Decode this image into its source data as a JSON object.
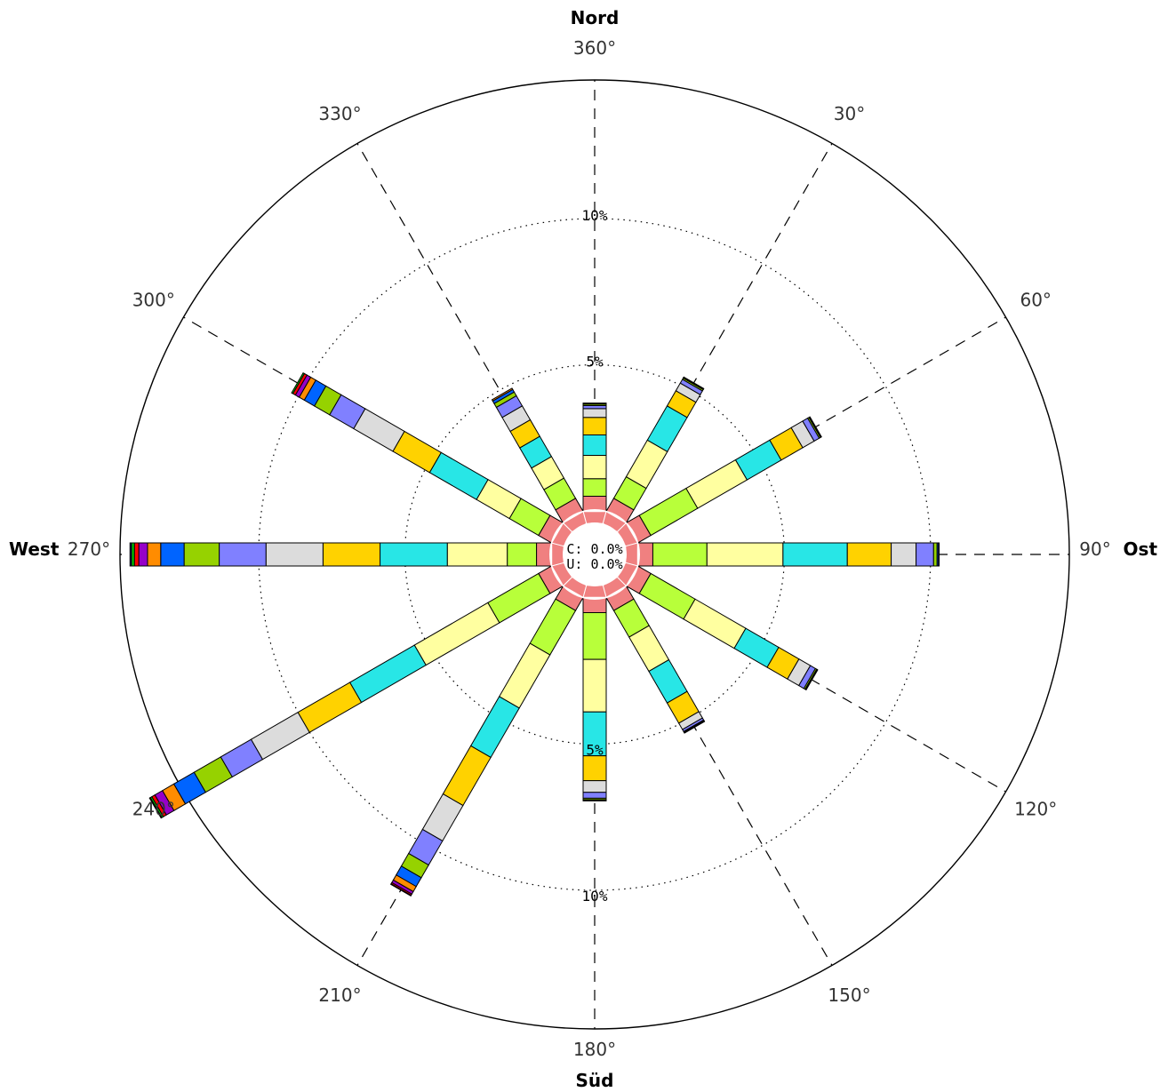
{
  "chart_data": {
    "type": "wind-rose",
    "title": "",
    "directions": {
      "north": "Nord",
      "east": "Ost",
      "south": "Süd",
      "west": "West"
    },
    "angle_labels": [
      {
        "deg": 360,
        "text": "360°"
      },
      {
        "deg": 30,
        "text": "30°"
      },
      {
        "deg": 60,
        "text": "60°"
      },
      {
        "deg": 90,
        "text": "90°"
      },
      {
        "deg": 120,
        "text": "120°"
      },
      {
        "deg": 150,
        "text": "150°"
      },
      {
        "deg": 180,
        "text": "180°"
      },
      {
        "deg": 210,
        "text": "210°"
      },
      {
        "deg": 240,
        "text": "240°"
      },
      {
        "deg": 270,
        "text": "270°"
      },
      {
        "deg": 300,
        "text": "300°"
      },
      {
        "deg": 330,
        "text": "330°"
      }
    ],
    "rings": [
      {
        "value": 5,
        "label": "5%"
      },
      {
        "value": 10,
        "label": "10%"
      }
    ],
    "ring_labels_north": [
      "5%",
      "10%"
    ],
    "ring_labels_south": [
      "5%",
      "10%"
    ],
    "r_max": 16.05,
    "calm_label": "C:  0.0%",
    "undefined_label": "U:  0.0%",
    "bin_colors": [
      "#f08080",
      "#b8ff3a",
      "#ffffa0",
      "#28e6e6",
      "#ffd200",
      "#dcdcdc",
      "#8080ff",
      "#96d200",
      "#0064ff",
      "#ff8c00",
      "#9600c8",
      "#ff0000",
      "#00c800",
      "#000080"
    ],
    "sectors": [
      {
        "direction": 0,
        "segments": [
          0.5,
          0.6,
          0.8,
          0.7,
          0.6,
          0.3,
          0.1,
          0.05,
          0.02,
          0.02
        ]
      },
      {
        "direction": 30,
        "segments": [
          0.5,
          0.85,
          1.45,
          1.35,
          0.6,
          0.3,
          0.15,
          0.05,
          0.02,
          0.02
        ]
      },
      {
        "direction": 60,
        "segments": [
          0.5,
          1.85,
          1.95,
          1.35,
          0.85,
          0.45,
          0.2,
          0.05,
          0.02,
          0.02
        ]
      },
      {
        "direction": 90,
        "segments": [
          0.5,
          1.85,
          2.6,
          2.2,
          1.5,
          0.85,
          0.6,
          0.12,
          0.05,
          0.02
        ]
      },
      {
        "direction": 120,
        "segments": [
          0.5,
          1.75,
          2.0,
          1.3,
          0.8,
          0.45,
          0.2,
          0.05,
          0.02,
          0.02
        ]
      },
      {
        "direction": 150,
        "segments": [
          0.5,
          1.05,
          1.35,
          1.25,
          0.8,
          0.25,
          0.08,
          0.03,
          0.02,
          0.01
        ]
      },
      {
        "direction": 180,
        "segments": [
          0.5,
          1.6,
          1.8,
          1.5,
          0.85,
          0.4,
          0.2,
          0.05,
          0.02,
          0.02
        ]
      },
      {
        "direction": 210,
        "segments": [
          0.5,
          1.75,
          2.1,
          1.95,
          1.9,
          1.4,
          0.95,
          0.5,
          0.35,
          0.2,
          0.1,
          0.05,
          0.02
        ]
      },
      {
        "direction": 240,
        "segments": [
          0.5,
          2.0,
          2.9,
          2.55,
          2.05,
          1.85,
          1.2,
          1.05,
          0.8,
          0.45,
          0.3,
          0.12,
          0.06,
          0.03
        ]
      },
      {
        "direction": 270,
        "segments": [
          0.5,
          1.0,
          2.05,
          2.3,
          1.95,
          1.95,
          1.6,
          1.2,
          0.8,
          0.45,
          0.3,
          0.15,
          0.1,
          0.05
        ]
      },
      {
        "direction": 300,
        "segments": [
          0.5,
          1.15,
          1.3,
          1.85,
          1.45,
          1.55,
          0.95,
          0.6,
          0.4,
          0.2,
          0.15,
          0.1,
          0.05
        ]
      },
      {
        "direction": 330,
        "segments": [
          0.5,
          0.8,
          0.85,
          0.8,
          0.65,
          0.55,
          0.4,
          0.15,
          0.1,
          0.05
        ]
      }
    ]
  }
}
